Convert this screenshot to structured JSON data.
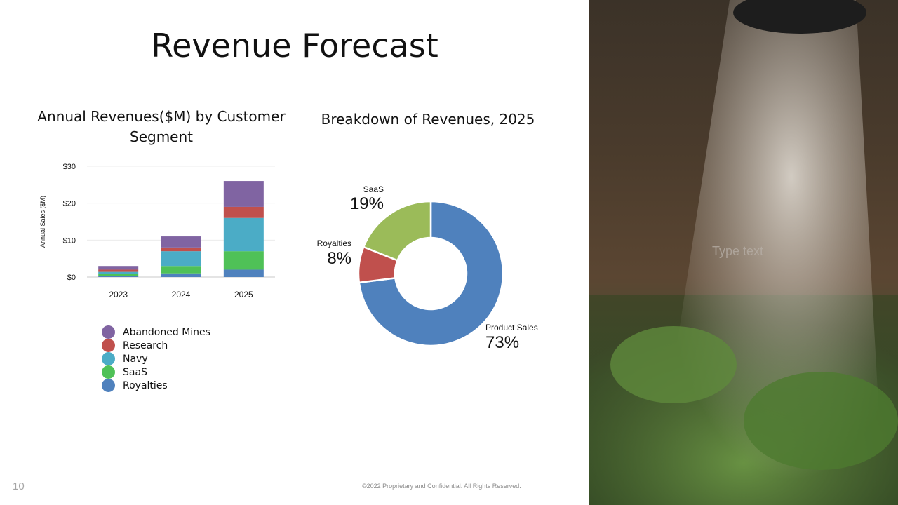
{
  "slide": {
    "title": "Revenue Forecast",
    "number": "10",
    "footer": "©2022 Proprietary and Confidential. All Rights Reserved.",
    "photo_caption": "Type text"
  },
  "chart_data": [
    {
      "type": "bar",
      "stacked": true,
      "title": "Annual Revenues($M) by Customer Segment",
      "ylabel": "Annual Sales ($M)",
      "ylim": [
        0,
        30
      ],
      "yticks": [
        "$0",
        "$10",
        "$20",
        "$30"
      ],
      "categories": [
        "2023",
        "2024",
        "2025"
      ],
      "legend_position": "bottom-left",
      "series": [
        {
          "name": "Royalties",
          "color": "#4f81bd",
          "values": [
            0.3,
            1,
            2
          ]
        },
        {
          "name": "SaaS",
          "color": "#4fc157",
          "values": [
            0.5,
            2,
            5
          ]
        },
        {
          "name": "Navy",
          "color": "#4bacc6",
          "values": [
            0.6,
            4,
            9
          ]
        },
        {
          "name": "Research",
          "color": "#c0504d",
          "values": [
            0.6,
            1,
            3
          ]
        },
        {
          "name": "Abandoned Mines",
          "color": "#8064a2",
          "values": [
            1,
            3,
            7
          ]
        }
      ],
      "legend_order": [
        "Abandoned Mines",
        "Research",
        "Navy",
        "SaaS",
        "Royalties"
      ]
    },
    {
      "type": "pie",
      "donut": true,
      "title": "Breakdown of Revenues, 2025",
      "slices": [
        {
          "name": "Product Sales",
          "value": 73,
          "label": "73%",
          "color": "#4f81bd"
        },
        {
          "name": "Royalties",
          "value": 8,
          "label": "8%",
          "color": "#c0504d"
        },
        {
          "name": "SaaS",
          "value": 19,
          "label": "19%",
          "color": "#9bbb59"
        }
      ]
    }
  ]
}
